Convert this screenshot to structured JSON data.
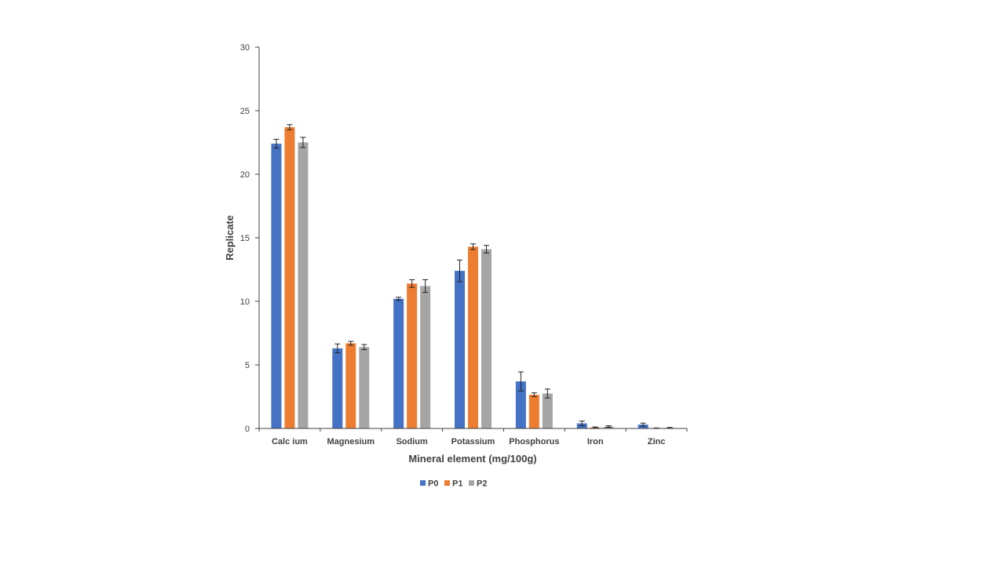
{
  "chart_data": {
    "type": "bar",
    "title": "",
    "xlabel": "Mineral element (mg/100g)",
    "ylabel": "Replicate",
    "ylim": [
      0,
      30
    ],
    "yticks": [
      0,
      5,
      10,
      15,
      20,
      25,
      30
    ],
    "grid": false,
    "legend": "bottom",
    "categories": [
      "Calc ium",
      "Magnesium",
      "Sodium",
      "Potassium",
      "Phosphorus",
      "Iron",
      "Zinc"
    ],
    "series": [
      {
        "name": "P0",
        "color": "#4472C4",
        "values": [
          22.4,
          6.3,
          10.2,
          12.4,
          3.7,
          0.4,
          0.3
        ],
        "errors": [
          0.35,
          0.35,
          0.12,
          0.85,
          0.75,
          0.18,
          0.12
        ]
      },
      {
        "name": "P1",
        "color": "#ED7D31",
        "values": [
          23.7,
          6.7,
          11.4,
          14.3,
          2.65,
          0.08,
          0.02
        ],
        "errors": [
          0.2,
          0.15,
          0.3,
          0.22,
          0.15,
          0.04,
          0.02
        ]
      },
      {
        "name": "P2",
        "color": "#A5A5A5",
        "values": [
          22.5,
          6.4,
          11.2,
          14.1,
          2.75,
          0.15,
          0.05
        ],
        "errors": [
          0.4,
          0.2,
          0.5,
          0.3,
          0.35,
          0.06,
          0.03
        ]
      }
    ]
  }
}
